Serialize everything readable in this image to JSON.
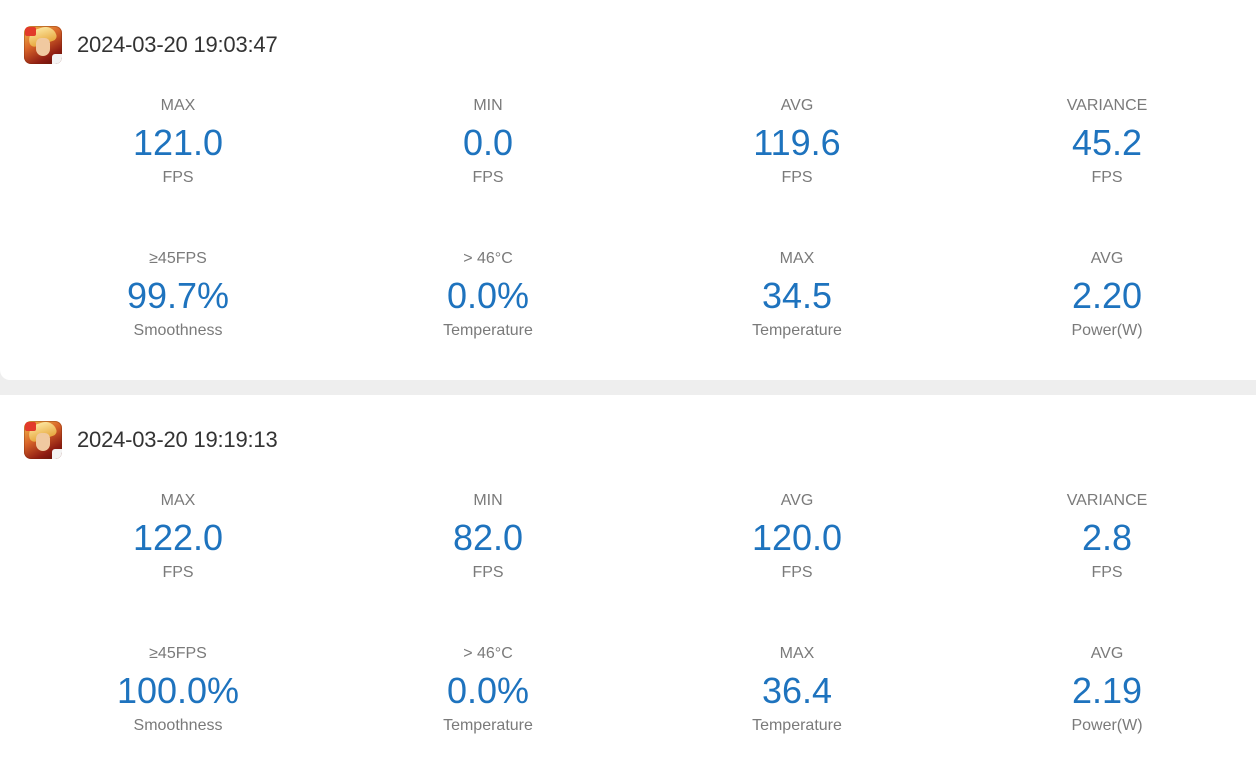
{
  "sessions": [
    {
      "timestamp": "2024-03-20 19:03:47",
      "metrics": [
        {
          "top": "MAX",
          "value": "121.0",
          "bottom": "FPS"
        },
        {
          "top": "MIN",
          "value": "0.0",
          "bottom": "FPS"
        },
        {
          "top": "AVG",
          "value": "119.6",
          "bottom": "FPS"
        },
        {
          "top": "VARIANCE",
          "value": "45.2",
          "bottom": "FPS"
        },
        {
          "top": "≥45FPS",
          "value": "99.7%",
          "bottom": "Smoothness"
        },
        {
          "top": "> 46°C",
          "value": "0.0%",
          "bottom": "Temperature"
        },
        {
          "top": "MAX",
          "value": "34.5",
          "bottom": "Temperature"
        },
        {
          "top": "AVG",
          "value": "2.20",
          "bottom": "Power(W)"
        }
      ]
    },
    {
      "timestamp": "2024-03-20 19:19:13",
      "metrics": [
        {
          "top": "MAX",
          "value": "122.0",
          "bottom": "FPS"
        },
        {
          "top": "MIN",
          "value": "82.0",
          "bottom": "FPS"
        },
        {
          "top": "AVG",
          "value": "120.0",
          "bottom": "FPS"
        },
        {
          "top": "VARIANCE",
          "value": "2.8",
          "bottom": "FPS"
        },
        {
          "top": "≥45FPS",
          "value": "100.0%",
          "bottom": "Smoothness"
        },
        {
          "top": "> 46°C",
          "value": "0.0%",
          "bottom": "Temperature"
        },
        {
          "top": "MAX",
          "value": "36.4",
          "bottom": "Temperature"
        },
        {
          "top": "AVG",
          "value": "2.19",
          "bottom": "Power(W)"
        }
      ]
    }
  ],
  "colors": {
    "value": "#1e73be",
    "label": "#7a7a7a",
    "timestamp": "#333333",
    "background": "#eeeeee",
    "card": "#ffffff"
  },
  "icons": {
    "app": "game-app-icon"
  }
}
